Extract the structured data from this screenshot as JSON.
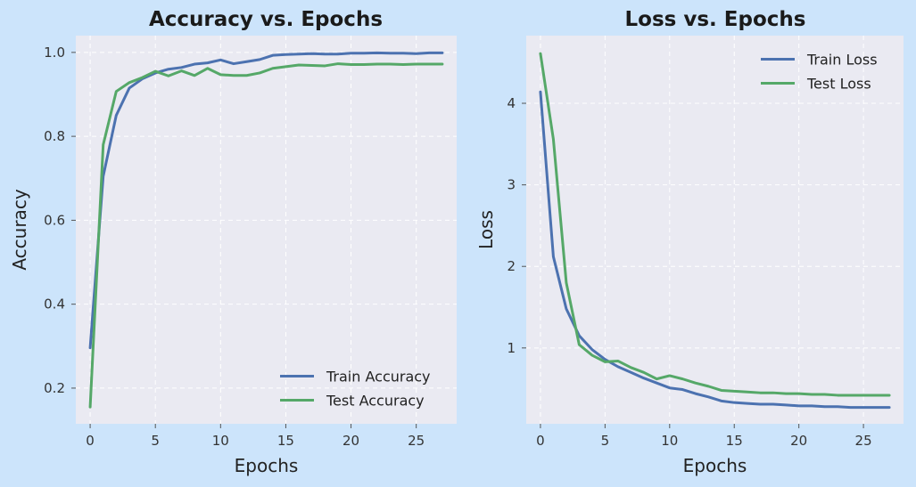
{
  "chart_data": [
    {
      "type": "line",
      "title": "Accuracy vs. Epochs",
      "xlabel": "Epochs",
      "ylabel": "Accuracy",
      "xlim": [
        -1.1,
        28.1
      ],
      "ylim": [
        0.115,
        1.04
      ],
      "xticks": [
        0,
        5,
        10,
        15,
        20,
        25
      ],
      "yticks": [
        0.2,
        0.4,
        0.6,
        0.8,
        1.0
      ],
      "ytick_labels": [
        "0.2",
        "0.4",
        "0.6",
        "0.8",
        "1.0"
      ],
      "grid": true,
      "legend_position": "lower-right",
      "x": [
        0,
        1,
        2,
        3,
        4,
        5,
        6,
        7,
        8,
        9,
        10,
        11,
        12,
        13,
        14,
        15,
        16,
        17,
        18,
        19,
        20,
        21,
        22,
        23,
        24,
        25,
        26,
        27
      ],
      "series": [
        {
          "name": "Train Accuracy",
          "color": "#4c72b0",
          "values": [
            0.296,
            0.705,
            0.85,
            0.915,
            0.937,
            0.951,
            0.96,
            0.964,
            0.972,
            0.975,
            0.982,
            0.973,
            0.978,
            0.983,
            0.993,
            0.995,
            0.996,
            0.997,
            0.996,
            0.996,
            0.998,
            0.998,
            0.999,
            0.998,
            0.998,
            0.997,
            0.999,
            0.999
          ]
        },
        {
          "name": "Test Accuracy",
          "color": "#55a868",
          "values": [
            0.155,
            0.78,
            0.907,
            0.928,
            0.94,
            0.955,
            0.944,
            0.956,
            0.945,
            0.962,
            0.947,
            0.945,
            0.945,
            0.951,
            0.962,
            0.966,
            0.97,
            0.969,
            0.968,
            0.973,
            0.971,
            0.971,
            0.972,
            0.972,
            0.971,
            0.972,
            0.972,
            0.972
          ]
        }
      ]
    },
    {
      "type": "line",
      "title": "Loss vs. Epochs",
      "xlabel": "Epochs",
      "ylabel": "Loss",
      "xlim": [
        -1.1,
        28.1
      ],
      "ylim": [
        0.07,
        4.83
      ],
      "xticks": [
        0,
        5,
        10,
        15,
        20,
        25
      ],
      "yticks": [
        1,
        2,
        3,
        4
      ],
      "ytick_labels": [
        "1",
        "2",
        "3",
        "4"
      ],
      "grid": true,
      "legend_position": "upper-right",
      "x": [
        0,
        1,
        2,
        3,
        4,
        5,
        6,
        7,
        8,
        9,
        10,
        11,
        12,
        13,
        14,
        15,
        16,
        17,
        18,
        19,
        20,
        21,
        22,
        23,
        24,
        25,
        26,
        27
      ],
      "series": [
        {
          "name": "Train Loss",
          "color": "#4c72b0",
          "values": [
            4.14,
            2.12,
            1.48,
            1.15,
            0.98,
            0.86,
            0.77,
            0.7,
            0.63,
            0.57,
            0.51,
            0.49,
            0.44,
            0.4,
            0.35,
            0.33,
            0.32,
            0.31,
            0.31,
            0.3,
            0.29,
            0.29,
            0.28,
            0.28,
            0.27,
            0.27,
            0.27,
            0.27
          ]
        },
        {
          "name": "Test Loss",
          "color": "#55a868",
          "values": [
            4.61,
            3.56,
            1.8,
            1.04,
            0.91,
            0.83,
            0.84,
            0.76,
            0.7,
            0.62,
            0.66,
            0.62,
            0.57,
            0.53,
            0.48,
            0.47,
            0.46,
            0.45,
            0.45,
            0.44,
            0.44,
            0.43,
            0.43,
            0.42,
            0.42,
            0.42,
            0.42,
            0.42
          ]
        }
      ]
    }
  ]
}
